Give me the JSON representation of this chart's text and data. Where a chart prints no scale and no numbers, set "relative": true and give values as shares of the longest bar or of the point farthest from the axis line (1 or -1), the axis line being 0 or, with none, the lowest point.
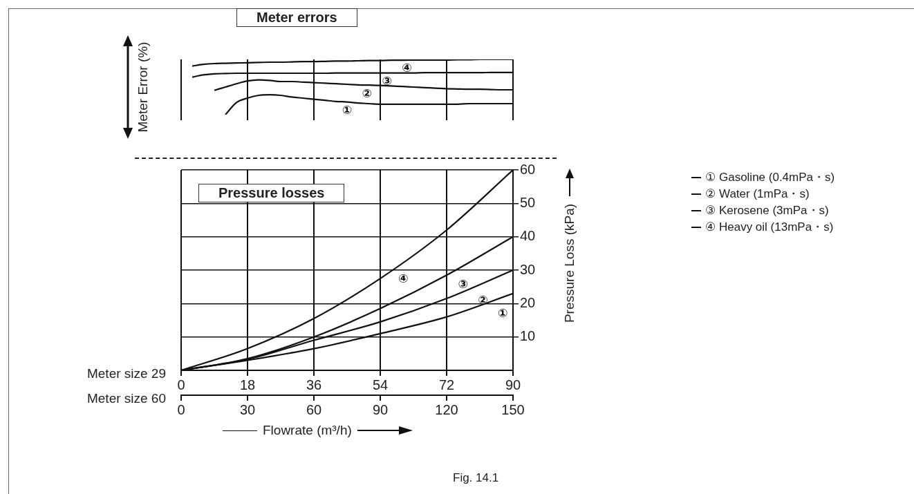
{
  "chart_data": [
    {
      "type": "line",
      "title": "Meter errors",
      "ylabel": "Meter Error (%)",
      "relative": true,
      "categories": [
        null,
        null,
        null,
        null,
        null,
        null,
        null,
        null,
        null,
        null,
        null,
        null,
        null,
        null,
        null,
        null,
        null,
        null,
        null,
        null,
        null,
        null,
        null,
        null,
        null,
        null,
        null,
        null,
        null,
        null,
        null
      ],
      "grid": "x",
      "marker": "none",
      "line_style": "solid",
      "series": [
        {
          "color": "#111111",
          "values": [
            null,
            null,
            null,
            null,
            0,
            0.22,
            0.3,
            0.35,
            0.36,
            0.35,
            0.32,
            0.3,
            0.28,
            0.26,
            0.24,
            0.23,
            0.21,
            0.2,
            0.19,
            0.19,
            0.19,
            0.19,
            0.19,
            0.19,
            0.19,
            0.19,
            0.2,
            0.2,
            0.2,
            0.2,
            0.2
          ]
        },
        {
          "color": "#111111",
          "values": [
            null,
            null,
            null,
            0.44,
            0.5,
            0.56,
            0.61,
            0.63,
            0.62,
            0.6,
            0.6,
            0.59,
            0.58,
            0.57,
            0.56,
            0.55,
            0.54,
            0.535,
            0.53,
            0.52,
            0.51,
            0.5,
            0.49,
            0.48,
            0.47,
            0.465,
            0.46,
            0.46,
            0.455,
            0.45,
            0.45
          ]
        },
        {
          "color": "#111111",
          "values": [
            null,
            0.68,
            0.72,
            0.74,
            0.745,
            0.75,
            0.75,
            0.75,
            0.75,
            0.75,
            0.75,
            0.75,
            0.75,
            0.75,
            0.755,
            0.755,
            0.755,
            0.755,
            0.755,
            0.755,
            0.755,
            0.755,
            0.76,
            0.76,
            0.76,
            0.76,
            0.76,
            0.76,
            0.765,
            0.765,
            0.765
          ]
        },
        {
          "color": "#111111",
          "values": [
            null,
            0.88,
            0.91,
            0.925,
            0.93,
            0.935,
            0.94,
            0.945,
            0.95,
            0.95,
            0.955,
            0.96,
            0.96,
            0.965,
            0.97,
            0.97,
            0.975,
            0.98,
            0.98,
            0.985,
            0.985,
            0.99,
            0.99,
            0.99,
            0.99,
            0.995,
            0.995,
            1,
            1,
            1,
            1
          ]
        }
      ],
      "annotations": [
        "①",
        "②",
        "③",
        "④"
      ]
    },
    {
      "type": "line",
      "title": "Pressure losses",
      "xlabel": "Flowrate (m³/h)",
      "ylabel": "Pressure Loss (kPa)",
      "xlim": [
        0,
        90
      ],
      "xticks": [
        0,
        18,
        36,
        54,
        72,
        90
      ],
      "x2lim": [
        0,
        150
      ],
      "x2ticks": [
        0,
        30,
        60,
        90,
        120,
        150
      ],
      "ylim": [
        0,
        60
      ],
      "yticks": [
        10,
        20,
        30,
        40,
        50,
        60
      ],
      "grid": true,
      "legend": "right",
      "marker": "none",
      "line_style": "solid",
      "series": [
        {
          "name": "① Gasoline (0.4mPa・s)",
          "color": "#111111",
          "x": [
            0,
            18,
            36,
            54,
            72,
            90
          ],
          "values": [
            0,
            3,
            6.5,
            11,
            16,
            23
          ]
        },
        {
          "name": "② Water (1mPa・s)",
          "color": "#111111",
          "x": [
            0,
            18,
            36,
            54,
            72,
            90
          ],
          "values": [
            0,
            3.3,
            9,
            14.5,
            21.5,
            30
          ]
        },
        {
          "name": "③ Kerosene (3mPa・s)",
          "color": "#111111",
          "x": [
            0,
            18,
            36,
            54,
            72,
            90
          ],
          "values": [
            0,
            3.5,
            10,
            18.5,
            28.5,
            40
          ]
        },
        {
          "name": "④ Heavy oil (13mPa・s)",
          "color": "#111111",
          "x": [
            0,
            18,
            36,
            54,
            72,
            90
          ],
          "values": [
            0,
            6.5,
            15.5,
            27.5,
            42,
            60
          ]
        }
      ],
      "annotations": [
        "Meter size 29",
        "Meter size 60",
        "Fig. 14.1",
        "①",
        "②",
        "③",
        "④"
      ]
    }
  ]
}
